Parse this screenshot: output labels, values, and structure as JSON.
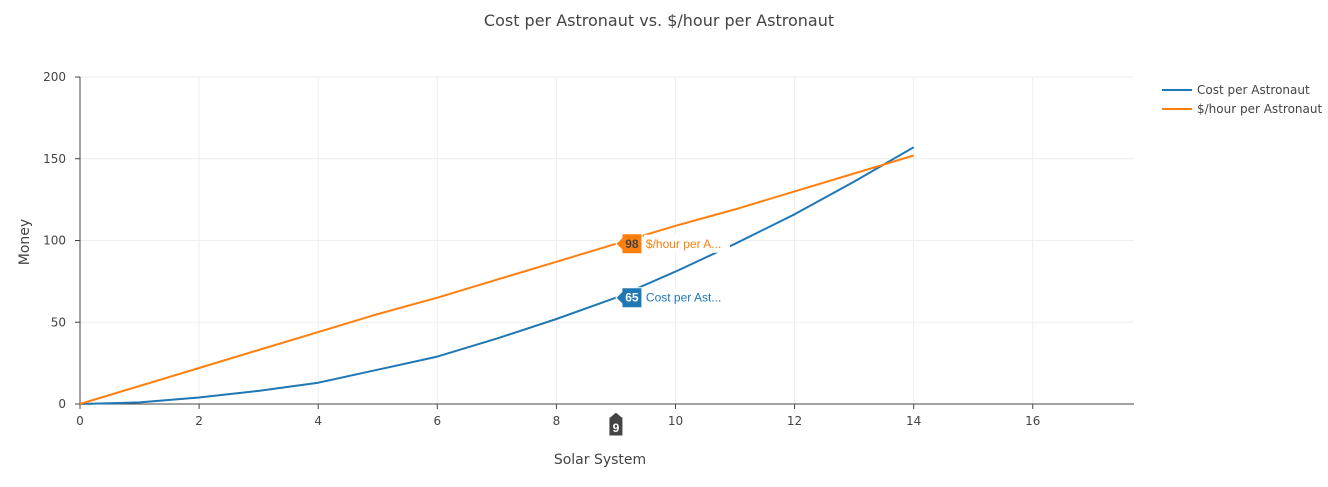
{
  "chart_data": {
    "type": "line",
    "title": "Cost per Astronaut vs. $/hour per Astronaut",
    "xlabel": "Solar System",
    "ylabel": "Money",
    "xlim": [
      0,
      17.7
    ],
    "ylim": [
      0,
      200
    ],
    "xticks": [
      0,
      2,
      4,
      6,
      8,
      10,
      12,
      14,
      16
    ],
    "yticks": [
      0,
      50,
      100,
      150,
      200
    ],
    "grid": true,
    "legend_position": "top-right",
    "x": [
      0,
      1,
      2,
      3,
      4,
      5,
      6,
      7,
      8,
      9,
      10,
      11,
      12,
      13,
      14
    ],
    "series": [
      {
        "name": "Cost per Astronaut",
        "color": "#1f77b4",
        "values": [
          0,
          1,
          4,
          8,
          13,
          21,
          29,
          40,
          52,
          65,
          81,
          98,
          116,
          136,
          157
        ]
      },
      {
        "name": "$/hour per Astronaut",
        "color": "#ff7f0e",
        "values": [
          0,
          11,
          22,
          33,
          44,
          55,
          65,
          76,
          87,
          98,
          109,
          119,
          130,
          141,
          152
        ]
      }
    ],
    "hover": {
      "x_label": "9",
      "labels": [
        {
          "series_index": 0,
          "value": "65",
          "text": "Cost per Ast..."
        },
        {
          "series_index": 1,
          "value": "98",
          "text": "$/hour per A..."
        }
      ]
    }
  }
}
